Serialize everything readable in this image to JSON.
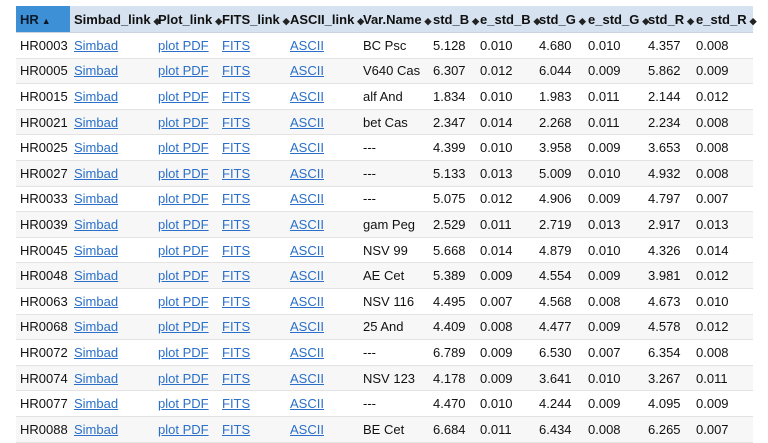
{
  "columns": [
    {
      "key": "hr",
      "label": "HR",
      "sort": "asc"
    },
    {
      "key": "simbad",
      "label": "Simbad_link",
      "sort": "both"
    },
    {
      "key": "plot",
      "label": "Plot_link",
      "sort": "both"
    },
    {
      "key": "fits",
      "label": "FITS_link",
      "sort": "both"
    },
    {
      "key": "ascii",
      "label": "ASCII_link",
      "sort": "both"
    },
    {
      "key": "var",
      "label": "Var.Name",
      "sort": "both"
    },
    {
      "key": "std_b",
      "label": "std_B",
      "sort": "both"
    },
    {
      "key": "e_std_b",
      "label": "e_std_B",
      "sort": "both"
    },
    {
      "key": "std_g",
      "label": "std_G",
      "sort": "both"
    },
    {
      "key": "e_std_g",
      "label": "e_std_G",
      "sort": "both"
    },
    {
      "key": "std_r",
      "label": "std_R",
      "sort": "both"
    },
    {
      "key": "e_std_r",
      "label": "e_std_R",
      "sort": "both"
    }
  ],
  "link_labels": {
    "simbad": "Simbad",
    "plot": "plot PDF",
    "fits": "FITS",
    "ascii": "ASCII"
  },
  "sort_glyphs": {
    "asc": "▲",
    "both": "◆"
  },
  "rows": [
    {
      "hr": "HR0003",
      "var": "BC Psc",
      "std_b": "5.128",
      "e_std_b": "0.010",
      "std_g": "4.680",
      "e_std_g": "0.010",
      "std_r": "4.357",
      "e_std_r": "0.008"
    },
    {
      "hr": "HR0005",
      "var": "V640 Cas",
      "std_b": "6.307",
      "e_std_b": "0.012",
      "std_g": "6.044",
      "e_std_g": "0.009",
      "std_r": "5.862",
      "e_std_r": "0.009"
    },
    {
      "hr": "HR0015",
      "var": "alf And",
      "std_b": "1.834",
      "e_std_b": "0.010",
      "std_g": "1.983",
      "e_std_g": "0.011",
      "std_r": "2.144",
      "e_std_r": "0.012"
    },
    {
      "hr": "HR0021",
      "var": "bet Cas",
      "std_b": "2.347",
      "e_std_b": "0.014",
      "std_g": "2.268",
      "e_std_g": "0.011",
      "std_r": "2.234",
      "e_std_r": "0.008"
    },
    {
      "hr": "HR0025",
      "var": "---",
      "std_b": "4.399",
      "e_std_b": "0.010",
      "std_g": "3.958",
      "e_std_g": "0.009",
      "std_r": "3.653",
      "e_std_r": "0.008"
    },
    {
      "hr": "HR0027",
      "var": "---",
      "std_b": "5.133",
      "e_std_b": "0.013",
      "std_g": "5.009",
      "e_std_g": "0.010",
      "std_r": "4.932",
      "e_std_r": "0.008"
    },
    {
      "hr": "HR0033",
      "var": "---",
      "std_b": "5.075",
      "e_std_b": "0.012",
      "std_g": "4.906",
      "e_std_g": "0.009",
      "std_r": "4.797",
      "e_std_r": "0.007"
    },
    {
      "hr": "HR0039",
      "var": "gam Peg",
      "std_b": "2.529",
      "e_std_b": "0.011",
      "std_g": "2.719",
      "e_std_g": "0.013",
      "std_r": "2.917",
      "e_std_r": "0.013"
    },
    {
      "hr": "HR0045",
      "var": "NSV 99",
      "std_b": "5.668",
      "e_std_b": "0.014",
      "std_g": "4.879",
      "e_std_g": "0.010",
      "std_r": "4.326",
      "e_std_r": "0.014"
    },
    {
      "hr": "HR0048",
      "var": "AE Cet",
      "std_b": "5.389",
      "e_std_b": "0.009",
      "std_g": "4.554",
      "e_std_g": "0.009",
      "std_r": "3.981",
      "e_std_r": "0.012"
    },
    {
      "hr": "HR0063",
      "var": "NSV 116",
      "std_b": "4.495",
      "e_std_b": "0.007",
      "std_g": "4.568",
      "e_std_g": "0.008",
      "std_r": "4.673",
      "e_std_r": "0.010"
    },
    {
      "hr": "HR0068",
      "var": "25 And",
      "std_b": "4.409",
      "e_std_b": "0.008",
      "std_g": "4.477",
      "e_std_g": "0.009",
      "std_r": "4.578",
      "e_std_r": "0.012"
    },
    {
      "hr": "HR0072",
      "var": "---",
      "std_b": "6.789",
      "e_std_b": "0.009",
      "std_g": "6.530",
      "e_std_g": "0.007",
      "std_r": "6.354",
      "e_std_r": "0.008"
    },
    {
      "hr": "HR0074",
      "var": "NSV 123",
      "std_b": "4.178",
      "e_std_b": "0.009",
      "std_g": "3.641",
      "e_std_g": "0.010",
      "std_r": "3.267",
      "e_std_r": "0.011"
    },
    {
      "hr": "HR0077",
      "var": "---",
      "std_b": "4.470",
      "e_std_b": "0.010",
      "std_g": "4.244",
      "e_std_g": "0.009",
      "std_r": "4.095",
      "e_std_r": "0.009"
    },
    {
      "hr": "HR0088",
      "var": "BE Cet",
      "std_b": "6.684",
      "e_std_b": "0.011",
      "std_g": "6.434",
      "e_std_g": "0.008",
      "std_r": "6.265",
      "e_std_r": "0.007"
    }
  ]
}
